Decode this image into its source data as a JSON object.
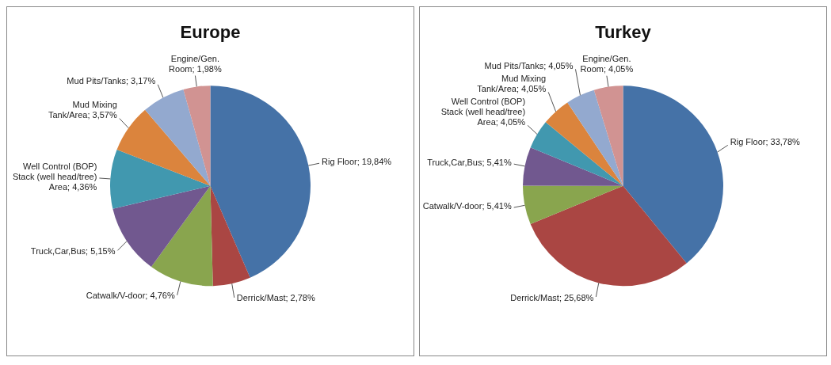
{
  "chart_data": [
    {
      "type": "pie",
      "title": "Europe",
      "categories": [
        "Rig Floor",
        "Derrick/Mast",
        "Catwalk/V-door",
        "Truck,Car,Bus",
        "Well Control (BOP) Stack (well head/tree) Area",
        "Mud Mixing Tank/Area",
        "Mud Pits/Tanks",
        "Engine/Gen. Room"
      ],
      "values": [
        19.84,
        2.78,
        4.76,
        5.15,
        4.36,
        3.57,
        3.17,
        1.98
      ],
      "value_labels": [
        "19,84%",
        "2,78%",
        "4,76%",
        "5,15%",
        "4,36%",
        "3,57%",
        "3,17%",
        "1,98%"
      ],
      "colors": [
        "#4572a7",
        "#aa4643",
        "#89a54e",
        "#71588f",
        "#4198af",
        "#db843d",
        "#93a9cf",
        "#d19392"
      ],
      "legend": false
    },
    {
      "type": "pie",
      "title": "Turkey",
      "categories": [
        "Rig Floor",
        "Derrick/Mast",
        "Catwalk/V-door",
        "Truck,Car,Bus",
        "Well Control (BOP) Stack (well head/tree) Area",
        "Mud Mixing Tank/Area",
        "Mud Pits/Tanks",
        "Engine/Gen. Room"
      ],
      "values": [
        33.78,
        25.68,
        5.41,
        5.41,
        4.05,
        4.05,
        4.05,
        4.05
      ],
      "value_labels": [
        "33,78%",
        "25,68%",
        "5,41%",
        "5,41%",
        "4,05%",
        "4,05%",
        "4,05%",
        "4,05%"
      ],
      "colors": [
        "#4572a7",
        "#aa4643",
        "#89a54e",
        "#71588f",
        "#4198af",
        "#db843d",
        "#93a9cf",
        "#d19392"
      ],
      "legend": false
    }
  ]
}
